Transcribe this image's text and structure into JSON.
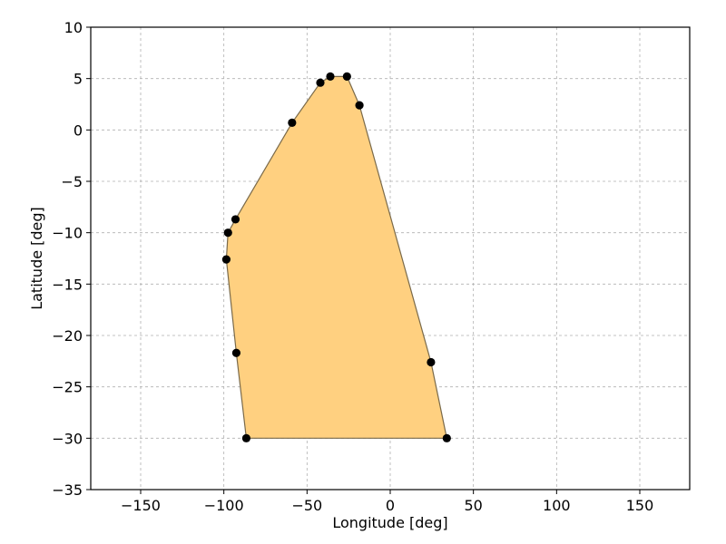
{
  "chart_data": {
    "type": "scatter",
    "title": "",
    "xlabel": "Longitude [deg]",
    "ylabel": "Latitude [deg]",
    "xlim": [
      -180,
      180
    ],
    "ylim": [
      -35,
      10
    ],
    "xticks": [
      -150,
      -100,
      -50,
      0,
      50,
      100,
      150
    ],
    "yticks": [
      10,
      5,
      0,
      -5,
      -10,
      -15,
      -20,
      -25,
      -30,
      -35
    ],
    "xtick_labels": [
      "−150",
      "−100",
      "−50",
      "0",
      "50",
      "100",
      "150"
    ],
    "ytick_labels": [
      "10",
      "5",
      "0",
      "−5",
      "−10",
      "−15",
      "−20",
      "−25",
      "−30",
      "−35"
    ],
    "grid": true,
    "polygon": {
      "fill_color": "#ffd080",
      "edge_color": "#7a6a4a",
      "vertices": [
        {
          "x": -36,
          "y": 5.2
        },
        {
          "x": -26,
          "y": 5.2
        },
        {
          "x": -18.5,
          "y": 2.4
        },
        {
          "x": 24.5,
          "y": -22.6
        },
        {
          "x": 34,
          "y": -30
        },
        {
          "x": -86.5,
          "y": -30
        },
        {
          "x": -92.5,
          "y": -21.7
        },
        {
          "x": -98.5,
          "y": -12.6
        },
        {
          "x": -97.5,
          "y": -10
        },
        {
          "x": -93,
          "y": -8.7
        },
        {
          "x": -59,
          "y": 0.7
        },
        {
          "x": -42,
          "y": 4.6
        }
      ]
    },
    "points": {
      "color": "#000000",
      "x": [
        -36,
        -26,
        -18.5,
        24.5,
        34,
        -86.5,
        -92.5,
        -98.5,
        -97.5,
        -93,
        -59,
        -42
      ],
      "y": [
        5.2,
        5.2,
        2.4,
        -22.6,
        -30,
        -30,
        -21.7,
        -12.6,
        -10,
        -8.7,
        0.7,
        4.6
      ]
    }
  }
}
